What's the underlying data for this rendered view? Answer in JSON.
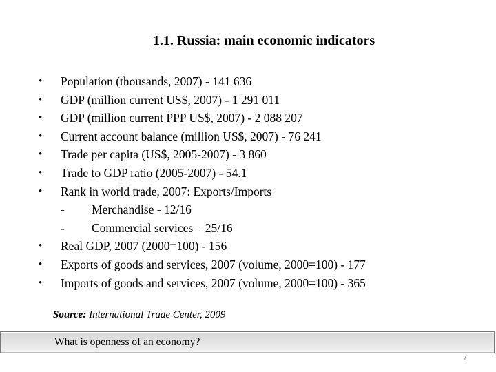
{
  "slide": {
    "title": "1.1. Russia: main economic indicators",
    "bullet_symbol": "•",
    "dash_symbol": "-",
    "bullets": [
      "Population (thousands, 2007) - 141 636",
      "GDP (million current US$, 2007) - 1 291 011",
      "GDP (million current PPP US$, 2007) - 2 088 207",
      "Current account balance (million US$, 2007) - 76 241",
      "Trade per capita (US$, 2005-2007) - 3 860",
      "Trade to GDP ratio (2005-2007) - 54.1",
      "Rank in world trade, 2007: Exports/Imports"
    ],
    "sub_items": [
      "Merchandise -  12/16",
      "Commercial services – 25/16"
    ],
    "bullets_after": [
      "Real GDP, 2007 (2000=100) - 156",
      "Exports of goods and services, 2007 (volume, 2000=100) - 177",
      "Imports of goods and services, 2007 (volume, 2000=100) - 365"
    ],
    "source_label": "Source:",
    "source_text": " International Trade Center, 2009",
    "question": "What is openness of an economy?",
    "page_number": "7"
  }
}
